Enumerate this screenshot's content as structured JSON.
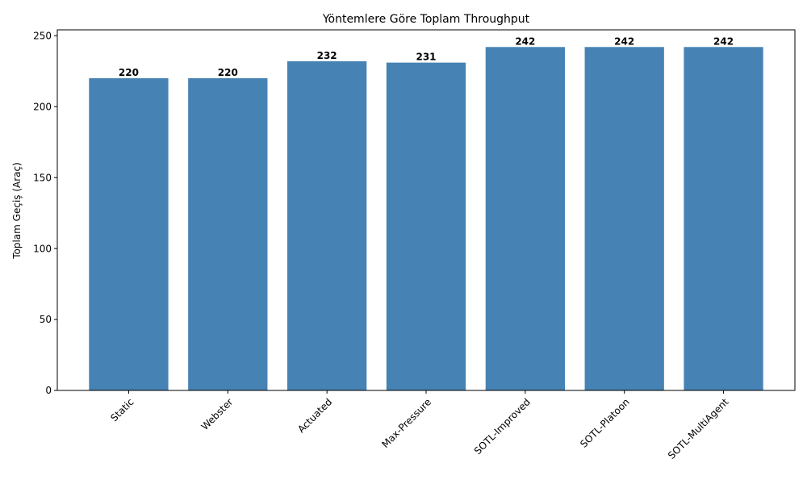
{
  "chart_data": {
    "type": "bar",
    "title": "Yöntemlere Göre Toplam Throughput",
    "xlabel": "",
    "ylabel": "Toplam Geçiş (Araç)",
    "categories": [
      "Static",
      "Webster",
      "Actuated",
      "Max-Pressure",
      "SOTL-Improved",
      "SOTL-Platoon",
      "SOTL-MultiAgent"
    ],
    "values": [
      220,
      220,
      232,
      231,
      242,
      242,
      242
    ],
    "data_labels": [
      "220",
      "220",
      "232",
      "231",
      "242",
      "242",
      "242"
    ],
    "ylim": [
      0,
      254.1
    ],
    "yticks": [
      0,
      50,
      100,
      150,
      200,
      250
    ],
    "ytick_labels": [
      "0",
      "50",
      "100",
      "150",
      "200",
      "250"
    ],
    "xtick_rotation_deg": 45,
    "bar_color": "#4682b4",
    "grid": false,
    "legend": "none"
  }
}
